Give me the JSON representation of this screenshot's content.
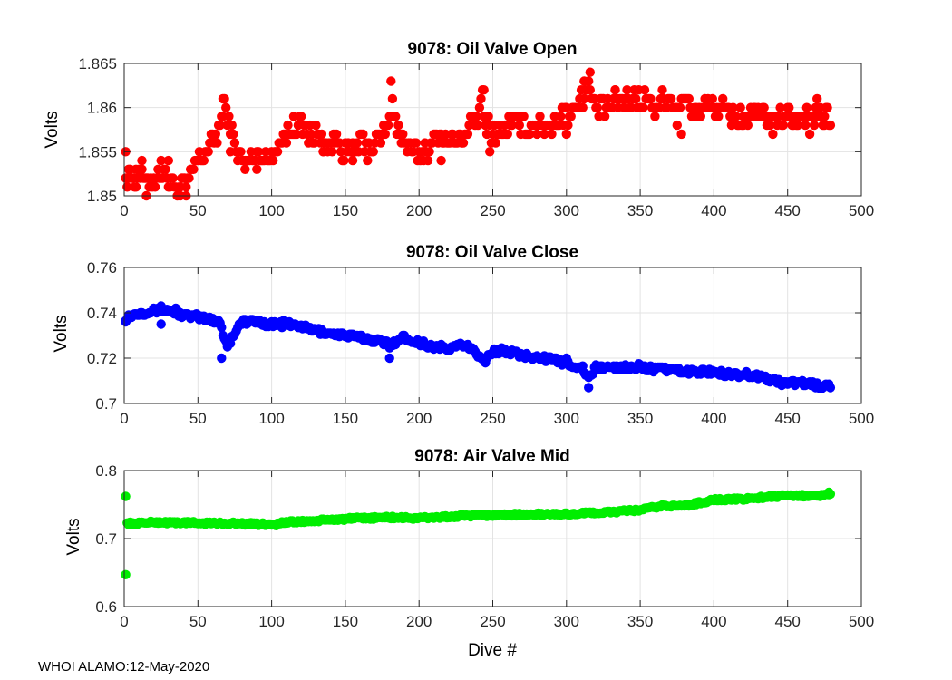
{
  "footer": "WHOI ALAMO:12-May-2020",
  "chart_data": [
    {
      "type": "scatter",
      "title": "9078: Oil Valve Open",
      "xlabel": "",
      "ylabel": "Volts",
      "xlim": [
        0,
        500
      ],
      "ylim": [
        1.85,
        1.865
      ],
      "xticks": [
        0,
        50,
        100,
        150,
        200,
        250,
        300,
        350,
        400,
        450,
        500
      ],
      "yticks": [
        1.85,
        1.855,
        1.86,
        1.865
      ],
      "ytick_labels": [
        "1.85",
        "1.855",
        "1.86",
        "1.865"
      ],
      "color": "#ff0000",
      "grid": true,
      "anchors": [
        [
          1,
          1.853
        ],
        [
          5,
          1.852
        ],
        [
          10,
          1.853
        ],
        [
          15,
          1.851
        ],
        [
          20,
          1.852
        ],
        [
          25,
          1.853
        ],
        [
          30,
          1.852
        ],
        [
          35,
          1.851
        ],
        [
          40,
          1.851
        ],
        [
          45,
          1.852
        ],
        [
          50,
          1.854
        ],
        [
          55,
          1.855
        ],
        [
          60,
          1.856
        ],
        [
          65,
          1.858
        ],
        [
          68,
          1.86
        ],
        [
          70,
          1.859
        ],
        [
          75,
          1.856
        ],
        [
          80,
          1.854
        ],
        [
          85,
          1.854
        ],
        [
          90,
          1.855
        ],
        [
          95,
          1.854
        ],
        [
          100,
          1.855
        ],
        [
          105,
          1.856
        ],
        [
          110,
          1.857
        ],
        [
          115,
          1.858
        ],
        [
          120,
          1.858
        ],
        [
          125,
          1.857
        ],
        [
          130,
          1.857
        ],
        [
          135,
          1.856
        ],
        [
          140,
          1.856
        ],
        [
          145,
          1.856
        ],
        [
          150,
          1.855
        ],
        [
          155,
          1.855
        ],
        [
          160,
          1.856
        ],
        [
          165,
          1.855
        ],
        [
          170,
          1.856
        ],
        [
          175,
          1.857
        ],
        [
          180,
          1.858
        ],
        [
          182,
          1.86
        ],
        [
          185,
          1.858
        ],
        [
          190,
          1.856
        ],
        [
          195,
          1.855
        ],
        [
          200,
          1.855
        ],
        [
          205,
          1.855
        ],
        [
          210,
          1.856
        ],
        [
          215,
          1.857
        ],
        [
          220,
          1.856
        ],
        [
          225,
          1.856
        ],
        [
          230,
          1.857
        ],
        [
          235,
          1.858
        ],
        [
          240,
          1.859
        ],
        [
          243,
          1.861
        ],
        [
          245,
          1.858
        ],
        [
          250,
          1.857
        ],
        [
          255,
          1.857
        ],
        [
          260,
          1.858
        ],
        [
          265,
          1.858
        ],
        [
          270,
          1.858
        ],
        [
          275,
          1.858
        ],
        [
          280,
          1.858
        ],
        [
          285,
          1.858
        ],
        [
          290,
          1.858
        ],
        [
          295,
          1.859
        ],
        [
          300,
          1.859
        ],
        [
          305,
          1.86
        ],
        [
          310,
          1.861
        ],
        [
          315,
          1.862
        ],
        [
          318,
          1.861
        ],
        [
          320,
          1.86
        ],
        [
          325,
          1.86
        ],
        [
          330,
          1.86
        ],
        [
          335,
          1.861
        ],
        [
          340,
          1.861
        ],
        [
          345,
          1.861
        ],
        [
          350,
          1.861
        ],
        [
          355,
          1.861
        ],
        [
          360,
          1.86
        ],
        [
          365,
          1.861
        ],
        [
          370,
          1.861
        ],
        [
          375,
          1.86
        ],
        [
          380,
          1.861
        ],
        [
          385,
          1.86
        ],
        [
          390,
          1.86
        ],
        [
          395,
          1.86
        ],
        [
          400,
          1.86
        ],
        [
          405,
          1.86
        ],
        [
          410,
          1.859
        ],
        [
          415,
          1.859
        ],
        [
          420,
          1.859
        ],
        [
          425,
          1.859
        ],
        [
          430,
          1.859
        ],
        [
          435,
          1.859
        ],
        [
          440,
          1.858
        ],
        [
          445,
          1.859
        ],
        [
          450,
          1.859
        ],
        [
          455,
          1.859
        ],
        [
          460,
          1.859
        ],
        [
          465,
          1.859
        ],
        [
          470,
          1.859
        ],
        [
          475,
          1.859
        ],
        [
          479,
          1.859
        ]
      ],
      "outliers": [
        [
          1,
          1.855
        ],
        [
          2,
          1.851
        ],
        [
          3,
          1.853
        ],
        [
          8,
          1.851
        ],
        [
          12,
          1.854
        ],
        [
          15,
          1.85
        ],
        [
          25,
          1.854
        ],
        [
          30,
          1.854
        ],
        [
          38,
          1.85
        ],
        [
          42,
          1.85
        ],
        [
          67,
          1.861
        ],
        [
          72,
          1.855
        ],
        [
          82,
          1.853
        ],
        [
          90,
          1.853
        ],
        [
          115,
          1.859
        ],
        [
          135,
          1.855
        ],
        [
          155,
          1.854
        ],
        [
          181,
          1.863
        ],
        [
          182,
          1.861
        ],
        [
          188,
          1.856
        ],
        [
          215,
          1.854
        ],
        [
          244,
          1.862
        ],
        [
          248,
          1.855
        ],
        [
          300,
          1.857
        ],
        [
          312,
          1.863
        ],
        [
          316,
          1.864
        ],
        [
          333,
          1.862
        ],
        [
          375,
          1.858
        ],
        [
          378,
          1.857
        ],
        [
          420,
          1.858
        ],
        [
          465,
          1.857
        ],
        [
          470,
          1.861
        ],
        [
          475,
          1.858
        ]
      ]
    },
    {
      "type": "scatter",
      "title": "9078: Oil Valve Close",
      "xlabel": "",
      "ylabel": "Volts",
      "xlim": [
        0,
        500
      ],
      "ylim": [
        0.7,
        0.76
      ],
      "xticks": [
        0,
        50,
        100,
        150,
        200,
        250,
        300,
        350,
        400,
        450,
        500
      ],
      "yticks": [
        0.7,
        0.72,
        0.74,
        0.76
      ],
      "ytick_labels": [
        "0.7",
        "0.72",
        "0.74",
        "0.76"
      ],
      "color": "#0000ff",
      "grid": true,
      "anchors": [
        [
          1,
          0.738
        ],
        [
          10,
          0.74
        ],
        [
          20,
          0.741
        ],
        [
          30,
          0.741
        ],
        [
          40,
          0.739
        ],
        [
          50,
          0.738
        ],
        [
          60,
          0.737
        ],
        [
          65,
          0.736
        ],
        [
          68,
          0.728
        ],
        [
          72,
          0.727
        ],
        [
          76,
          0.733
        ],
        [
          80,
          0.736
        ],
        [
          90,
          0.736
        ],
        [
          100,
          0.735
        ],
        [
          110,
          0.735
        ],
        [
          120,
          0.734
        ],
        [
          130,
          0.732
        ],
        [
          140,
          0.731
        ],
        [
          150,
          0.73
        ],
        [
          160,
          0.729
        ],
        [
          170,
          0.728
        ],
        [
          180,
          0.726
        ],
        [
          190,
          0.729
        ],
        [
          200,
          0.727
        ],
        [
          210,
          0.725
        ],
        [
          220,
          0.724
        ],
        [
          230,
          0.726
        ],
        [
          240,
          0.722
        ],
        [
          245,
          0.719
        ],
        [
          250,
          0.723
        ],
        [
          260,
          0.723
        ],
        [
          270,
          0.721
        ],
        [
          280,
          0.721
        ],
        [
          290,
          0.719
        ],
        [
          300,
          0.718
        ],
        [
          310,
          0.716
        ],
        [
          315,
          0.711
        ],
        [
          320,
          0.716
        ],
        [
          330,
          0.716
        ],
        [
          340,
          0.716
        ],
        [
          350,
          0.716
        ],
        [
          360,
          0.715
        ],
        [
          370,
          0.715
        ],
        [
          380,
          0.714
        ],
        [
          390,
          0.714
        ],
        [
          400,
          0.714
        ],
        [
          410,
          0.713
        ],
        [
          420,
          0.713
        ],
        [
          430,
          0.712
        ],
        [
          440,
          0.71
        ],
        [
          450,
          0.709
        ],
        [
          460,
          0.709
        ],
        [
          470,
          0.708
        ],
        [
          479,
          0.707
        ]
      ],
      "outliers": [
        [
          1,
          0.736
        ],
        [
          25,
          0.743
        ],
        [
          25,
          0.735
        ],
        [
          35,
          0.742
        ],
        [
          66,
          0.72
        ],
        [
          70,
          0.725
        ],
        [
          180,
          0.72
        ],
        [
          245,
          0.718
        ],
        [
          300,
          0.72
        ],
        [
          315,
          0.707
        ],
        [
          460,
          0.71
        ]
      ]
    },
    {
      "type": "scatter",
      "title": "9078: Air Valve Mid",
      "xlabel": "Dive #",
      "ylabel": "Volts",
      "xlim": [
        0,
        500
      ],
      "ylim": [
        0.6,
        0.8
      ],
      "xticks": [
        0,
        50,
        100,
        150,
        200,
        250,
        300,
        350,
        400,
        450,
        500
      ],
      "yticks": [
        0.6,
        0.7,
        0.8
      ],
      "ytick_labels": [
        "0.6",
        "0.7",
        "0.8"
      ],
      "color": "#00ee00",
      "grid": true,
      "anchors": [
        [
          2,
          0.722
        ],
        [
          20,
          0.724
        ],
        [
          50,
          0.723
        ],
        [
          80,
          0.722
        ],
        [
          100,
          0.721
        ],
        [
          110,
          0.724
        ],
        [
          130,
          0.726
        ],
        [
          150,
          0.729
        ],
        [
          180,
          0.731
        ],
        [
          200,
          0.73
        ],
        [
          230,
          0.733
        ],
        [
          260,
          0.735
        ],
        [
          300,
          0.736
        ],
        [
          330,
          0.739
        ],
        [
          350,
          0.742
        ],
        [
          365,
          0.748
        ],
        [
          380,
          0.748
        ],
        [
          400,
          0.757
        ],
        [
          420,
          0.758
        ],
        [
          440,
          0.762
        ],
        [
          460,
          0.763
        ],
        [
          479,
          0.764
        ]
      ],
      "outliers": [
        [
          1,
          0.647
        ],
        [
          5,
          0.721
        ],
        [
          103,
          0.719
        ],
        [
          478,
          0.768
        ]
      ]
    }
  ]
}
